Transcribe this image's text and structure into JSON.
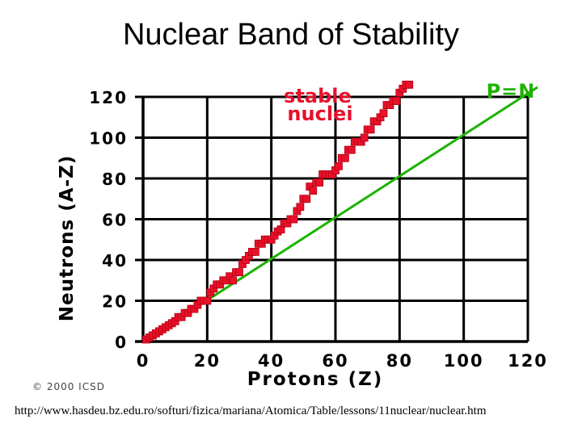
{
  "slide": {
    "title": "Nuclear Band of Stability",
    "source_url": "http://www.hasdeu.bz.edu.ro/softuri/fizica/mariana/Atomica/Table/lessons/11nuclear/nuclear.htm"
  },
  "chart_data": {
    "type": "scatter",
    "title": "",
    "xlabel": "Protons (Z)",
    "ylabel": "Neutrons (A-Z)",
    "xlim": [
      0,
      120
    ],
    "ylim": [
      0,
      120
    ],
    "x_ticks": [
      "0",
      "20",
      "40",
      "60",
      "80",
      "100",
      "120"
    ],
    "y_ticks": [
      "0",
      "20",
      "40",
      "60",
      "80",
      "100",
      "120"
    ],
    "grid": true,
    "copyright": "© 2000 ICSD",
    "colors": {
      "stable": "#e8102a",
      "reference": "#1db300",
      "grid": "#000000"
    },
    "series": [
      {
        "name": "stable nuclei",
        "label_lines": [
          "stable",
          "nuclei"
        ],
        "points": [
          [
            1,
            1
          ],
          [
            2,
            2
          ],
          [
            3,
            3
          ],
          [
            4,
            4
          ],
          [
            5,
            5
          ],
          [
            6,
            6
          ],
          [
            7,
            7
          ],
          [
            8,
            8
          ],
          [
            9,
            9
          ],
          [
            10,
            10
          ],
          [
            11,
            12
          ],
          [
            12,
            12
          ],
          [
            13,
            14
          ],
          [
            14,
            14
          ],
          [
            15,
            16
          ],
          [
            16,
            16
          ],
          [
            17,
            18
          ],
          [
            18,
            20
          ],
          [
            19,
            20
          ],
          [
            20,
            20
          ],
          [
            21,
            24
          ],
          [
            22,
            26
          ],
          [
            23,
            28
          ],
          [
            24,
            28
          ],
          [
            25,
            30
          ],
          [
            26,
            30
          ],
          [
            27,
            32
          ],
          [
            28,
            30
          ],
          [
            29,
            34
          ],
          [
            30,
            34
          ],
          [
            31,
            38
          ],
          [
            32,
            40
          ],
          [
            33,
            42
          ],
          [
            34,
            44
          ],
          [
            35,
            44
          ],
          [
            36,
            48
          ],
          [
            37,
            48
          ],
          [
            38,
            50
          ],
          [
            39,
            50
          ],
          [
            40,
            50
          ],
          [
            41,
            52
          ],
          [
            42,
            54
          ],
          [
            43,
            55
          ],
          [
            44,
            58
          ],
          [
            45,
            58
          ],
          [
            46,
            60
          ],
          [
            47,
            60
          ],
          [
            48,
            64
          ],
          [
            49,
            66
          ],
          [
            50,
            70
          ],
          [
            51,
            70
          ],
          [
            52,
            76
          ],
          [
            53,
            74
          ],
          [
            54,
            78
          ],
          [
            55,
            78
          ],
          [
            56,
            82
          ],
          [
            57,
            82
          ],
          [
            58,
            82
          ],
          [
            59,
            82
          ],
          [
            60,
            84
          ],
          [
            61,
            86
          ],
          [
            62,
            90
          ],
          [
            63,
            90
          ],
          [
            64,
            94
          ],
          [
            65,
            94
          ],
          [
            66,
            98
          ],
          [
            67,
            98
          ],
          [
            68,
            98
          ],
          [
            69,
            100
          ],
          [
            70,
            104
          ],
          [
            71,
            104
          ],
          [
            72,
            108
          ],
          [
            73,
            108
          ],
          [
            74,
            110
          ],
          [
            75,
            112
          ],
          [
            76,
            116
          ],
          [
            77,
            116
          ],
          [
            78,
            118
          ],
          [
            79,
            118
          ],
          [
            80,
            122
          ],
          [
            81,
            124
          ],
          [
            82,
            126
          ],
          [
            83,
            126
          ]
        ]
      },
      {
        "name": "P=N",
        "points": [
          [
            0,
            0
          ],
          [
            120,
            120
          ]
        ]
      }
    ]
  }
}
